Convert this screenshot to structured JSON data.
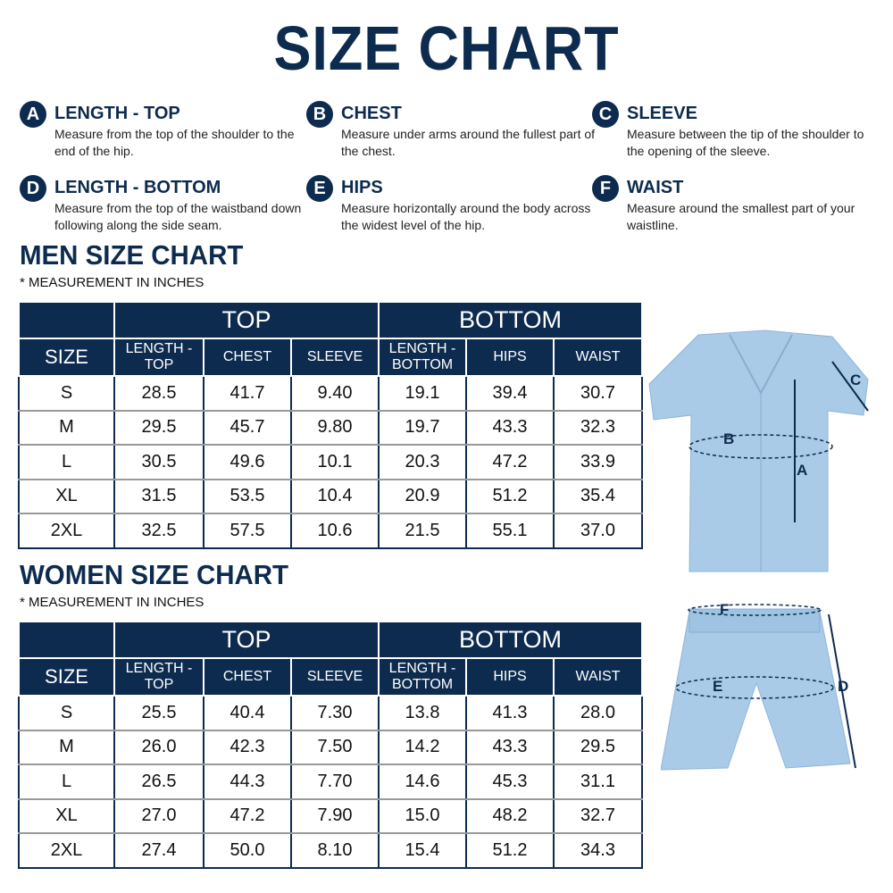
{
  "title": "SIZE CHART",
  "legend": [
    {
      "letter": "A",
      "title": "LENGTH - TOP",
      "desc": "Measure from the top of the shoulder to the end of the hip."
    },
    {
      "letter": "B",
      "title": "CHEST",
      "desc": "Measure under arms around the fullest part of the chest."
    },
    {
      "letter": "C",
      "title": "SLEEVE",
      "desc": "Measure between the tip of the shoulder to the opening of the sleeve."
    },
    {
      "letter": "D",
      "title": "LENGTH - BOTTOM",
      "desc": "Measure from the top of the waistband down following along the side seam."
    },
    {
      "letter": "E",
      "title": "HIPS",
      "desc": "Measure horizontally around the body across the widest level of the hip."
    },
    {
      "letter": "F",
      "title": "WAIST",
      "desc": "Measure around the smallest part of your waistline."
    }
  ],
  "headers": {
    "top": "TOP",
    "bottom": "BOTTOM",
    "size": "SIZE",
    "length_top": "LENGTH - TOP",
    "chest": "CHEST",
    "sleeve": "SLEEVE",
    "length_bottom": "LENGTH - BOTTOM",
    "hips": "HIPS",
    "waist": "WAIST"
  },
  "men": {
    "title": "MEN SIZE CHART",
    "subtitle": "* MEASUREMENT IN INCHES",
    "rows": [
      [
        "S",
        "28.5",
        "41.7",
        "9.40",
        "19.1",
        "39.4",
        "30.7"
      ],
      [
        "M",
        "29.5",
        "45.7",
        "9.80",
        "19.7",
        "43.3",
        "32.3"
      ],
      [
        "L",
        "30.5",
        "49.6",
        "10.1",
        "20.3",
        "47.2",
        "33.9"
      ],
      [
        "XL",
        "31.5",
        "53.5",
        "10.4",
        "20.9",
        "51.2",
        "35.4"
      ],
      [
        "2XL",
        "32.5",
        "57.5",
        "10.6",
        "21.5",
        "55.1",
        "37.0"
      ]
    ]
  },
  "women": {
    "title": "WOMEN SIZE CHART",
    "subtitle": "* MEASUREMENT IN INCHES",
    "rows": [
      [
        "S",
        "25.5",
        "40.4",
        "7.30",
        "13.8",
        "41.3",
        "28.0"
      ],
      [
        "M",
        "26.0",
        "42.3",
        "7.50",
        "14.2",
        "43.3",
        "29.5"
      ],
      [
        "L",
        "26.5",
        "44.3",
        "7.70",
        "14.6",
        "45.3",
        "31.1"
      ],
      [
        "XL",
        "27.0",
        "47.2",
        "7.90",
        "15.0",
        "48.2",
        "32.7"
      ],
      [
        "2XL",
        "27.4",
        "50.0",
        "8.10",
        "15.4",
        "51.2",
        "34.3"
      ]
    ]
  },
  "diagram_labels": {
    "a": "A",
    "b": "B",
    "c": "C",
    "d": "D",
    "e": "E",
    "f": "F"
  },
  "colors": {
    "navy": "#0d2b4e",
    "garment": "#a9cbe8"
  }
}
